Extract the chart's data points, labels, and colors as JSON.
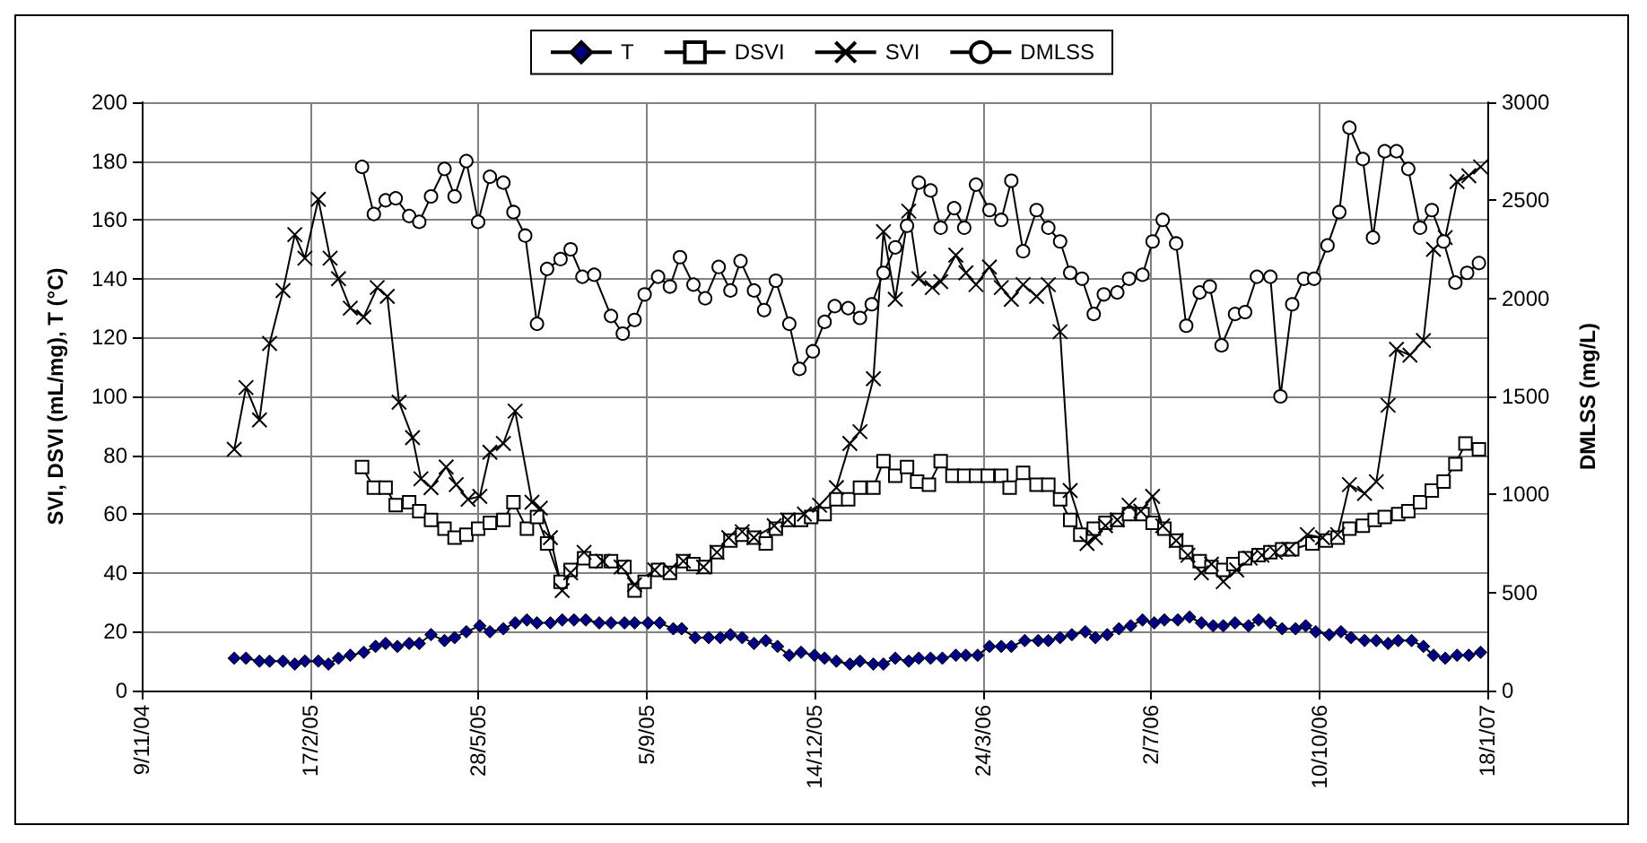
{
  "chart_data": {
    "type": "line",
    "ylabel": "SVI, DSVI (mL/mg), T (°C)",
    "y2label": "DMLSS (mg/L)",
    "xlim": [
      "2004-11-09",
      "2007-01-18"
    ],
    "xticks": [
      {
        "value": "2004-11-09",
        "label": "9/11/04"
      },
      {
        "value": "2005-02-17",
        "label": "17/2/05"
      },
      {
        "value": "2005-05-28",
        "label": "28/5/05"
      },
      {
        "value": "2005-09-05",
        "label": "5/9/05"
      },
      {
        "value": "2005-12-14",
        "label": "14/12/05"
      },
      {
        "value": "2006-03-24",
        "label": "24/3/06"
      },
      {
        "value": "2006-07-02",
        "label": "2/7/06"
      },
      {
        "value": "2006-10-10",
        "label": "10/10/06"
      },
      {
        "value": "2007-01-18",
        "label": "18/1/07"
      }
    ],
    "ylim": [
      0,
      200
    ],
    "yticks": [
      0,
      20,
      40,
      60,
      80,
      100,
      120,
      140,
      160,
      180,
      200
    ],
    "y2lim": [
      0,
      3000
    ],
    "y2ticks": [
      0,
      500,
      1000,
      1500,
      2000,
      2500,
      3000
    ],
    "grid": true,
    "legend": "top",
    "series": [
      {
        "name": "T",
        "color": "#000080",
        "marker": "diamond",
        "x": [
          "2005-01-03",
          "2005-01-10",
          "2005-01-18",
          "2005-01-24",
          "2005-02-01",
          "2005-02-08",
          "2005-02-14",
          "2005-02-22",
          "2005-02-28",
          "2005-03-06",
          "2005-03-13",
          "2005-03-21",
          "2005-03-28",
          "2005-04-03",
          "2005-04-10",
          "2005-04-17",
          "2005-04-23",
          "2005-04-30",
          "2005-05-08",
          "2005-05-14",
          "2005-05-21",
          "2005-05-29",
          "2005-06-04",
          "2005-06-12",
          "2005-06-19",
          "2005-06-26",
          "2005-07-02",
          "2005-07-10",
          "2005-07-17",
          "2005-07-24",
          "2005-07-31",
          "2005-08-08",
          "2005-08-15",
          "2005-08-23",
          "2005-08-29",
          "2005-09-06",
          "2005-09-13",
          "2005-09-21",
          "2005-09-26",
          "2005-10-04",
          "2005-10-12",
          "2005-10-19",
          "2005-10-25",
          "2005-11-01",
          "2005-11-08",
          "2005-11-15",
          "2005-11-22",
          "2005-11-29",
          "2005-12-06",
          "2005-12-14",
          "2005-12-20",
          "2005-12-27",
          "2006-01-04",
          "2006-01-10",
          "2006-01-18",
          "2006-01-24",
          "2006-01-31",
          "2006-02-08",
          "2006-02-14",
          "2006-02-21",
          "2006-02-28",
          "2006-03-08",
          "2006-03-14",
          "2006-03-21",
          "2006-03-28",
          "2006-04-04",
          "2006-04-10",
          "2006-04-18",
          "2006-04-26",
          "2006-05-02",
          "2006-05-09",
          "2006-05-16",
          "2006-05-24",
          "2006-05-30",
          "2006-06-06",
          "2006-06-13",
          "2006-06-20",
          "2006-06-27",
          "2006-07-04",
          "2006-07-10",
          "2006-07-18",
          "2006-07-25",
          "2006-08-01",
          "2006-08-08",
          "2006-08-14",
          "2006-08-21",
          "2006-08-29",
          "2006-09-04",
          "2006-09-11",
          "2006-09-18",
          "2006-09-26",
          "2006-10-02",
          "2006-10-08",
          "2006-10-16",
          "2006-10-23",
          "2006-10-29",
          "2006-11-06",
          "2006-11-13",
          "2006-11-20",
          "2006-11-26",
          "2006-12-04",
          "2006-12-11",
          "2006-12-17",
          "2006-12-24",
          "2006-12-31",
          "2007-01-07",
          "2007-01-14"
        ],
        "values": [
          11,
          11,
          10,
          10,
          10,
          9,
          10,
          10,
          9,
          11,
          12,
          13,
          15,
          16,
          15,
          16,
          16,
          19,
          17,
          18,
          20,
          22,
          20,
          21,
          23,
          24,
          23,
          23,
          24,
          24,
          24,
          23,
          23,
          23,
          23,
          23,
          23,
          21,
          21,
          18,
          18,
          18,
          19,
          18,
          16,
          17,
          15,
          12,
          13,
          12,
          11,
          10,
          9,
          10,
          9,
          9,
          11,
          10,
          11,
          11,
          11,
          12,
          12,
          12,
          15,
          15,
          15,
          17,
          17,
          17,
          18,
          19,
          20,
          18,
          19,
          21,
          22,
          24,
          23,
          24,
          24,
          25,
          23,
          22,
          22,
          23,
          22,
          24,
          23,
          21,
          21,
          22,
          20,
          19,
          20,
          18,
          17,
          17,
          16,
          17,
          17,
          15,
          12,
          11,
          12,
          12,
          13
        ]
      },
      {
        "name": "DSVI",
        "color": "#000000",
        "marker": "square",
        "x": [
          "2005-03-20",
          "2005-03-27",
          "2005-04-03",
          "2005-04-09",
          "2005-04-17",
          "2005-04-23",
          "2005-04-30",
          "2005-05-08",
          "2005-05-14",
          "2005-05-21",
          "2005-05-28",
          "2005-06-04",
          "2005-06-12",
          "2005-06-18",
          "2005-06-26",
          "2005-07-02",
          "2005-07-08",
          "2005-07-16",
          "2005-07-22",
          "2005-07-30",
          "2005-08-06",
          "2005-08-15",
          "2005-08-23",
          "2005-08-29",
          "2005-09-04",
          "2005-09-12",
          "2005-09-19",
          "2005-09-27",
          "2005-10-03",
          "2005-10-10",
          "2005-10-17",
          "2005-10-25",
          "2005-11-01",
          "2005-11-08",
          "2005-11-15",
          "2005-11-21",
          "2005-11-29",
          "2005-12-06",
          "2005-12-12",
          "2005-12-20",
          "2005-12-27",
          "2006-01-03",
          "2006-01-10",
          "2006-01-18",
          "2006-01-24",
          "2006-01-31",
          "2006-02-07",
          "2006-02-13",
          "2006-02-20",
          "2006-02-27",
          "2006-03-06",
          "2006-03-13",
          "2006-03-20",
          "2006-03-27",
          "2006-04-04",
          "2006-04-09",
          "2006-04-17",
          "2006-04-25",
          "2006-05-02",
          "2006-05-09",
          "2006-05-15",
          "2006-05-21",
          "2006-05-29",
          "2006-06-05",
          "2006-06-12",
          "2006-06-19",
          "2006-06-27",
          "2006-07-03",
          "2006-07-10",
          "2006-07-17",
          "2006-07-23",
          "2006-07-31",
          "2006-08-07",
          "2006-08-14",
          "2006-08-20",
          "2006-08-27",
          "2006-09-04",
          "2006-09-11",
          "2006-09-18",
          "2006-09-24",
          "2006-10-06",
          "2006-10-14",
          "2006-10-21",
          "2006-10-28",
          "2006-11-05",
          "2006-11-12",
          "2006-11-18",
          "2006-11-26",
          "2006-12-02",
          "2006-12-09",
          "2006-12-16",
          "2006-12-23",
          "2006-12-30",
          "2007-01-05",
          "2007-01-13"
        ],
        "values": [
          76,
          69,
          69,
          63,
          64,
          61,
          58,
          55,
          52,
          53,
          55,
          57,
          58,
          64,
          55,
          59,
          50,
          37,
          41,
          45,
          44,
          44,
          42,
          34,
          37,
          41,
          40,
          44,
          43,
          42,
          47,
          51,
          53,
          52,
          50,
          55,
          58,
          58,
          59,
          60,
          65,
          65,
          69,
          69,
          78,
          73,
          76,
          71,
          70,
          78,
          73,
          73,
          73,
          73,
          73,
          69,
          74,
          70,
          70,
          65,
          58,
          53,
          55,
          57,
          58,
          60,
          60,
          57,
          55,
          51,
          47,
          44,
          42,
          41,
          43,
          45,
          46,
          47,
          48,
          48,
          50,
          51,
          52,
          55,
          56,
          58,
          59,
          60,
          61,
          64,
          68,
          71,
          77,
          84,
          82
        ]
      },
      {
        "name": "SVI",
        "color": "#000000",
        "marker": "cross",
        "x": [
          "2005-01-03",
          "2005-01-10",
          "2005-01-18",
          "2005-01-24",
          "2005-02-01",
          "2005-02-08",
          "2005-02-14",
          "2005-02-22",
          "2005-03-01",
          "2005-03-06",
          "2005-03-13",
          "2005-03-21",
          "2005-03-29",
          "2005-04-04",
          "2005-04-11",
          "2005-04-19",
          "2005-04-24",
          "2005-04-30",
          "2005-05-09",
          "2005-05-15",
          "2005-05-22",
          "2005-05-29",
          "2005-06-04",
          "2005-06-12",
          "2005-06-19",
          "2005-06-29",
          "2005-07-04",
          "2005-07-10",
          "2005-07-17",
          "2005-07-22",
          "2005-07-30",
          "2005-08-10",
          "2005-08-21",
          "2005-08-29",
          "2005-09-10",
          "2005-09-19",
          "2005-09-27",
          "2005-10-09",
          "2005-10-17",
          "2005-10-24",
          "2005-11-01",
          "2005-11-08",
          "2005-11-20",
          "2005-11-28",
          "2005-12-08",
          "2005-12-17",
          "2005-12-27",
          "2006-01-04",
          "2006-01-10",
          "2006-01-18",
          "2006-01-24",
          "2006-01-31",
          "2006-02-08",
          "2006-02-14",
          "2006-02-22",
          "2006-02-27",
          "2006-03-08",
          "2006-03-14",
          "2006-03-20",
          "2006-03-28",
          "2006-04-04",
          "2006-04-10",
          "2006-04-17",
          "2006-04-25",
          "2006-05-02",
          "2006-05-09",
          "2006-05-15",
          "2006-05-25",
          "2006-05-30",
          "2006-06-05",
          "2006-06-12",
          "2006-06-19",
          "2006-06-26",
          "2006-07-03",
          "2006-07-09",
          "2006-07-17",
          "2006-07-24",
          "2006-08-01",
          "2006-08-07",
          "2006-08-14",
          "2006-08-22",
          "2006-08-30",
          "2006-09-06",
          "2006-09-14",
          "2006-09-22",
          "2006-10-03",
          "2006-10-12",
          "2006-10-21",
          "2006-10-28",
          "2006-11-06",
          "2006-11-13",
          "2006-11-20",
          "2006-11-25",
          "2006-12-03",
          "2006-12-11",
          "2006-12-17",
          "2006-12-24",
          "2006-12-31",
          "2007-01-07",
          "2007-01-14"
        ],
        "values": [
          82,
          103,
          92,
          118,
          136,
          155,
          147,
          167,
          147,
          140,
          130,
          127,
          137,
          134,
          98,
          86,
          72,
          69,
          76,
          70,
          65,
          66,
          81,
          84,
          95,
          64,
          62,
          52,
          34,
          40,
          47,
          44,
          42,
          36,
          41,
          41,
          44,
          42,
          47,
          52,
          54,
          52,
          56,
          58,
          60,
          63,
          69,
          84,
          88,
          106,
          156,
          133,
          163,
          140,
          137,
          139,
          148,
          142,
          138,
          144,
          137,
          133,
          138,
          134,
          138,
          122,
          68,
          50,
          52,
          56,
          58,
          63,
          61,
          66,
          56,
          51,
          46,
          40,
          43,
          37,
          41,
          45,
          46,
          47,
          48,
          53,
          52,
          53,
          70,
          67,
          71,
          97,
          116,
          114,
          119,
          150,
          154,
          173,
          175,
          178
        ]
      },
      {
        "name": "DMLSS",
        "color": "#000000",
        "marker": "circle",
        "axis": "y2",
        "x": [
          "2005-03-20",
          "2005-03-27",
          "2005-04-03",
          "2005-04-09",
          "2005-04-17",
          "2005-04-23",
          "2005-04-30",
          "2005-05-08",
          "2005-05-14",
          "2005-05-21",
          "2005-05-28",
          "2005-06-04",
          "2005-06-12",
          "2005-06-18",
          "2005-06-25",
          "2005-07-02",
          "2005-07-08",
          "2005-07-16",
          "2005-07-22",
          "2005-07-29",
          "2005-08-05",
          "2005-08-15",
          "2005-08-22",
          "2005-08-29",
          "2005-09-04",
          "2005-09-12",
          "2005-09-19",
          "2005-09-25",
          "2005-10-03",
          "2005-10-10",
          "2005-10-18",
          "2005-10-25",
          "2005-10-31",
          "2005-11-08",
          "2005-11-14",
          "2005-11-21",
          "2005-11-29",
          "2005-12-05",
          "2005-12-13",
          "2005-12-20",
          "2005-12-26",
          "2006-01-03",
          "2006-01-10",
          "2006-01-17",
          "2006-01-24",
          "2006-01-31",
          "2006-02-07",
          "2006-02-14",
          "2006-02-21",
          "2006-02-27",
          "2006-03-07",
          "2006-03-13",
          "2006-03-20",
          "2006-03-28",
          "2006-04-04",
          "2006-04-10",
          "2006-04-17",
          "2006-04-25",
          "2006-05-02",
          "2006-05-09",
          "2006-05-15",
          "2006-05-22",
          "2006-05-29",
          "2006-06-04",
          "2006-06-12",
          "2006-06-19",
          "2006-06-27",
          "2006-07-03",
          "2006-07-09",
          "2006-07-17",
          "2006-07-23",
          "2006-07-31",
          "2006-08-06",
          "2006-08-13",
          "2006-08-21",
          "2006-08-27",
          "2006-09-03",
          "2006-09-11",
          "2006-09-17",
          "2006-09-24",
          "2006-10-01",
          "2006-10-07",
          "2006-10-15",
          "2006-10-22",
          "2006-10-28",
          "2006-11-05",
          "2006-11-11",
          "2006-11-18",
          "2006-11-25",
          "2006-12-02",
          "2006-12-09",
          "2006-12-16",
          "2006-12-23",
          "2006-12-30",
          "2007-01-06",
          "2007-01-13"
        ],
        "values": [
          2670,
          2430,
          2500,
          2510,
          2420,
          2390,
          2520,
          2660,
          2520,
          2700,
          2390,
          2620,
          2590,
          2440,
          2320,
          1870,
          2150,
          2200,
          2250,
          2110,
          2120,
          1910,
          1820,
          1890,
          2020,
          2110,
          2060,
          2210,
          2070,
          2000,
          2160,
          2040,
          2190,
          2040,
          1940,
          2090,
          1870,
          1640,
          1730,
          1880,
          1960,
          1950,
          1900,
          1970,
          2130,
          2260,
          2370,
          2590,
          2550,
          2360,
          2460,
          2360,
          2580,
          2450,
          2400,
          2600,
          2240,
          2450,
          2360,
          2290,
          2130,
          2100,
          1920,
          2020,
          2030,
          2100,
          2120,
          2290,
          2400,
          2280,
          1860,
          2030,
          2060,
          1760,
          1920,
          1930,
          2110,
          2110,
          1500,
          1970,
          2100,
          2100,
          2270,
          2440,
          2870,
          2710,
          2310,
          2750,
          2750,
          2660,
          2360,
          2450,
          2290,
          2080,
          2130,
          2180
        ]
      }
    ]
  }
}
